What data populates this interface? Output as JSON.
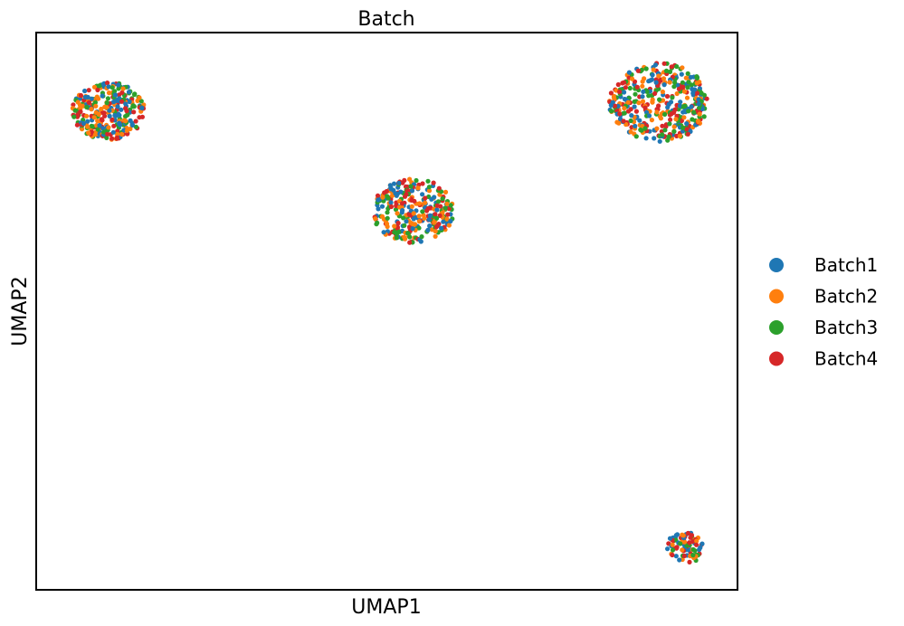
{
  "chart_data": {
    "type": "scatter",
    "title": "Batch",
    "xlabel": "UMAP1",
    "ylabel": "UMAP2",
    "xlim": [
      0,
      10
    ],
    "ylim": [
      0,
      10
    ],
    "grid": false,
    "ticks": false,
    "legend_position": "right",
    "series": [
      {
        "name": "Batch1",
        "color": "#1f77b4"
      },
      {
        "name": "Batch2",
        "color": "#ff7f0e"
      },
      {
        "name": "Batch3",
        "color": "#2ca02c"
      },
      {
        "name": "Batch4",
        "color": "#d62728"
      }
    ],
    "clusters": [
      {
        "center": [
          1.03,
          8.6
        ],
        "radius": 0.52,
        "n_points": 300
      },
      {
        "center": [
          5.38,
          6.8
        ],
        "radius": 0.58,
        "n_points": 300
      },
      {
        "center": [
          8.88,
          8.75
        ],
        "radius": 0.71,
        "n_points": 400
      },
      {
        "center": [
          9.25,
          0.75
        ],
        "radius": 0.28,
        "n_points": 80
      }
    ]
  }
}
